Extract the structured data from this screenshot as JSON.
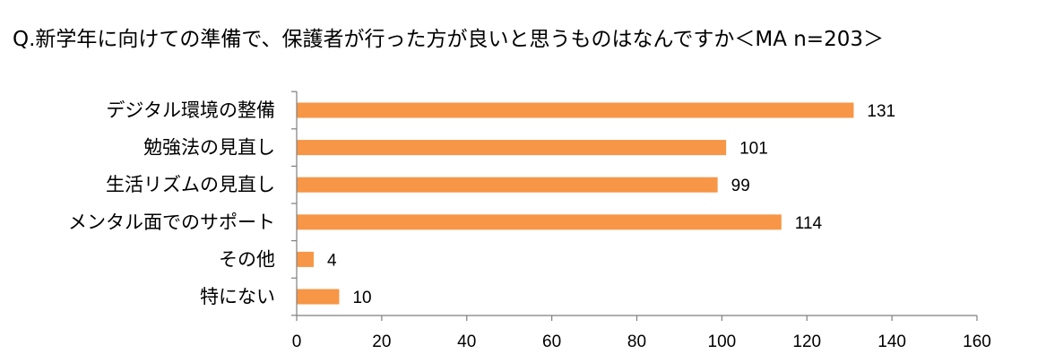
{
  "chart_data": {
    "type": "bar",
    "orientation": "horizontal",
    "title": "Q.新学年に向けての準備で、保護者が行った方が良いと思うものはなんですか＜MA n=203＞",
    "categories": [
      "デジタル環境の整備",
      "勉強法の見直し",
      "生活リズムの見直し",
      "メンタル面でのサポート",
      "その他",
      "特にない"
    ],
    "values": [
      131,
      101,
      99,
      114,
      4,
      10
    ],
    "xlim": [
      0,
      160
    ],
    "xticks": [
      0,
      20,
      40,
      60,
      80,
      100,
      120,
      140,
      160
    ],
    "xlabel": "",
    "ylabel": "",
    "grid": false,
    "legend": "none",
    "bar_color": "#F79646",
    "axis_color": "#7F7F7F"
  }
}
